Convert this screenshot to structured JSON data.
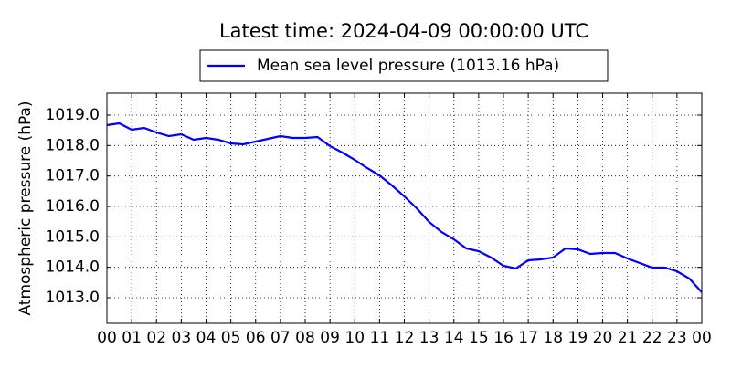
{
  "chart_data": {
    "type": "line",
    "title": "Latest time: 2024-04-09 00:00:00 UTC",
    "y_label": "Atmospheric pressure (hPa)",
    "x": [
      0,
      0.5,
      1,
      1.5,
      2,
      2.5,
      3,
      3.5,
      4,
      4.5,
      5,
      5.5,
      6,
      6.5,
      7,
      7.5,
      8,
      8.5,
      9,
      9.5,
      10,
      10.5,
      11,
      11.5,
      12,
      12.5,
      13,
      13.5,
      14,
      14.5,
      15,
      15.5,
      16,
      16.5,
      17,
      17.5,
      18,
      18.5,
      19,
      19.5,
      20,
      20.5,
      21,
      21.5,
      22,
      22.5,
      23,
      23.5,
      24
    ],
    "series": [
      {
        "name": "Mean sea level pressure (1013.16 hPa)",
        "color": "#0000ff",
        "values": [
          1018.67,
          1018.73,
          1018.52,
          1018.58,
          1018.43,
          1018.31,
          1018.37,
          1018.19,
          1018.25,
          1018.19,
          1018.07,
          1018.04,
          1018.13,
          1018.22,
          1018.31,
          1018.25,
          1018.25,
          1018.28,
          1017.98,
          1017.77,
          1017.53,
          1017.26,
          1017.02,
          1016.69,
          1016.33,
          1015.94,
          1015.49,
          1015.16,
          1014.92,
          1014.62,
          1014.53,
          1014.32,
          1014.05,
          1013.96,
          1014.23,
          1014.26,
          1014.32,
          1014.62,
          1014.59,
          1014.44,
          1014.47,
          1014.47,
          1014.29,
          1014.14,
          1013.99,
          1013.99,
          1013.87,
          1013.63,
          1013.18
        ]
      }
    ],
    "xlim": [
      0,
      24
    ],
    "xticks": [
      {
        "value": 0,
        "label": "00"
      },
      {
        "value": 1,
        "label": "01"
      },
      {
        "value": 2,
        "label": "02"
      },
      {
        "value": 3,
        "label": "03"
      },
      {
        "value": 4,
        "label": "04"
      },
      {
        "value": 5,
        "label": "05"
      },
      {
        "value": 6,
        "label": "06"
      },
      {
        "value": 7,
        "label": "07"
      },
      {
        "value": 8,
        "label": "08"
      },
      {
        "value": 9,
        "label": "09"
      },
      {
        "value": 10,
        "label": "10"
      },
      {
        "value": 11,
        "label": "11"
      },
      {
        "value": 12,
        "label": "12"
      },
      {
        "value": 13,
        "label": "13"
      },
      {
        "value": 14,
        "label": "14"
      },
      {
        "value": 15,
        "label": "15"
      },
      {
        "value": 16,
        "label": "16"
      },
      {
        "value": 17,
        "label": "17"
      },
      {
        "value": 18,
        "label": "18"
      },
      {
        "value": 19,
        "label": "19"
      },
      {
        "value": 20,
        "label": "20"
      },
      {
        "value": 21,
        "label": "21"
      },
      {
        "value": 22,
        "label": "22"
      },
      {
        "value": 23,
        "label": "23"
      },
      {
        "value": 24,
        "label": "00"
      }
    ],
    "ylim": [
      1012.16,
      1019.72
    ],
    "yticks": [
      {
        "value": 1013,
        "label": "1013.0"
      },
      {
        "value": 1014,
        "label": "1014.0"
      },
      {
        "value": 1015,
        "label": "1015.0"
      },
      {
        "value": 1016,
        "label": "1016.0"
      },
      {
        "value": 1017,
        "label": "1017.0"
      },
      {
        "value": 1018,
        "label": "1018.0"
      },
      {
        "value": 1019,
        "label": "1019.0"
      }
    ],
    "grid": true,
    "legend": "top"
  }
}
